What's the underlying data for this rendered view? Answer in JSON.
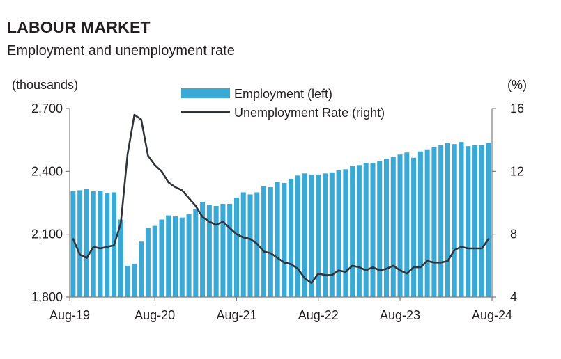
{
  "header": {
    "title": "LABOUR MARKET",
    "subtitle": "Employment and unemployment rate"
  },
  "colors": {
    "bar": "#3aa9d6",
    "line": "#2f353b",
    "axis": "#7f7f7f"
  },
  "chart_data": {
    "type": "bar",
    "left_axis_unit": "(thousands)",
    "right_axis_unit": "(%)",
    "ylim_left": [
      1800,
      2700
    ],
    "yticks_left": [
      "1,800",
      "2,100",
      "2,400",
      "2,700"
    ],
    "ylim_right": [
      4,
      16
    ],
    "yticks_right": [
      "4",
      "8",
      "12",
      "16"
    ],
    "x_tick_labels": [
      "Aug-19",
      "Aug-20",
      "Aug-21",
      "Aug-22",
      "Aug-23",
      "Aug-24"
    ],
    "x_tick_index": [
      0,
      12,
      24,
      36,
      48,
      60
    ],
    "legend_position": "top-center",
    "grid": false,
    "series": [
      {
        "name": "Employment (left)",
        "kind": "bar",
        "axis": "left",
        "values": [
          2306,
          2310,
          2315,
          2305,
          2308,
          2298,
          2300,
          2170,
          1950,
          1960,
          2065,
          2130,
          2140,
          2170,
          2190,
          2185,
          2180,
          2195,
          2220,
          2255,
          2240,
          2235,
          2245,
          2245,
          2275,
          2300,
          2290,
          2300,
          2330,
          2325,
          2350,
          2345,
          2365,
          2380,
          2390,
          2385,
          2385,
          2390,
          2395,
          2405,
          2410,
          2425,
          2430,
          2440,
          2440,
          2450,
          2460,
          2470,
          2480,
          2490,
          2465,
          2495,
          2505,
          2515,
          2525,
          2535,
          2530,
          2540,
          2520,
          2525,
          2525,
          2535
        ]
      },
      {
        "name": "Unemployment Rate (right)",
        "kind": "line",
        "axis": "right",
        "values": [
          7.7,
          6.7,
          6.5,
          7.2,
          7.1,
          7.2,
          7.3,
          8.7,
          13.1,
          15.6,
          15.3,
          13.0,
          12.4,
          12.0,
          11.3,
          11.0,
          10.8,
          10.3,
          9.8,
          9.1,
          8.8,
          8.6,
          8.8,
          8.4,
          8.0,
          7.8,
          7.7,
          7.4,
          6.9,
          6.8,
          6.5,
          6.2,
          6.1,
          5.8,
          5.2,
          4.9,
          5.5,
          5.4,
          5.4,
          5.7,
          5.6,
          6.0,
          5.9,
          5.7,
          5.9,
          5.7,
          5.8,
          6.0,
          5.7,
          5.5,
          5.9,
          5.9,
          6.3,
          6.2,
          6.2,
          6.3,
          7.0,
          7.2,
          7.1,
          7.1,
          7.1,
          7.7
        ]
      }
    ]
  }
}
